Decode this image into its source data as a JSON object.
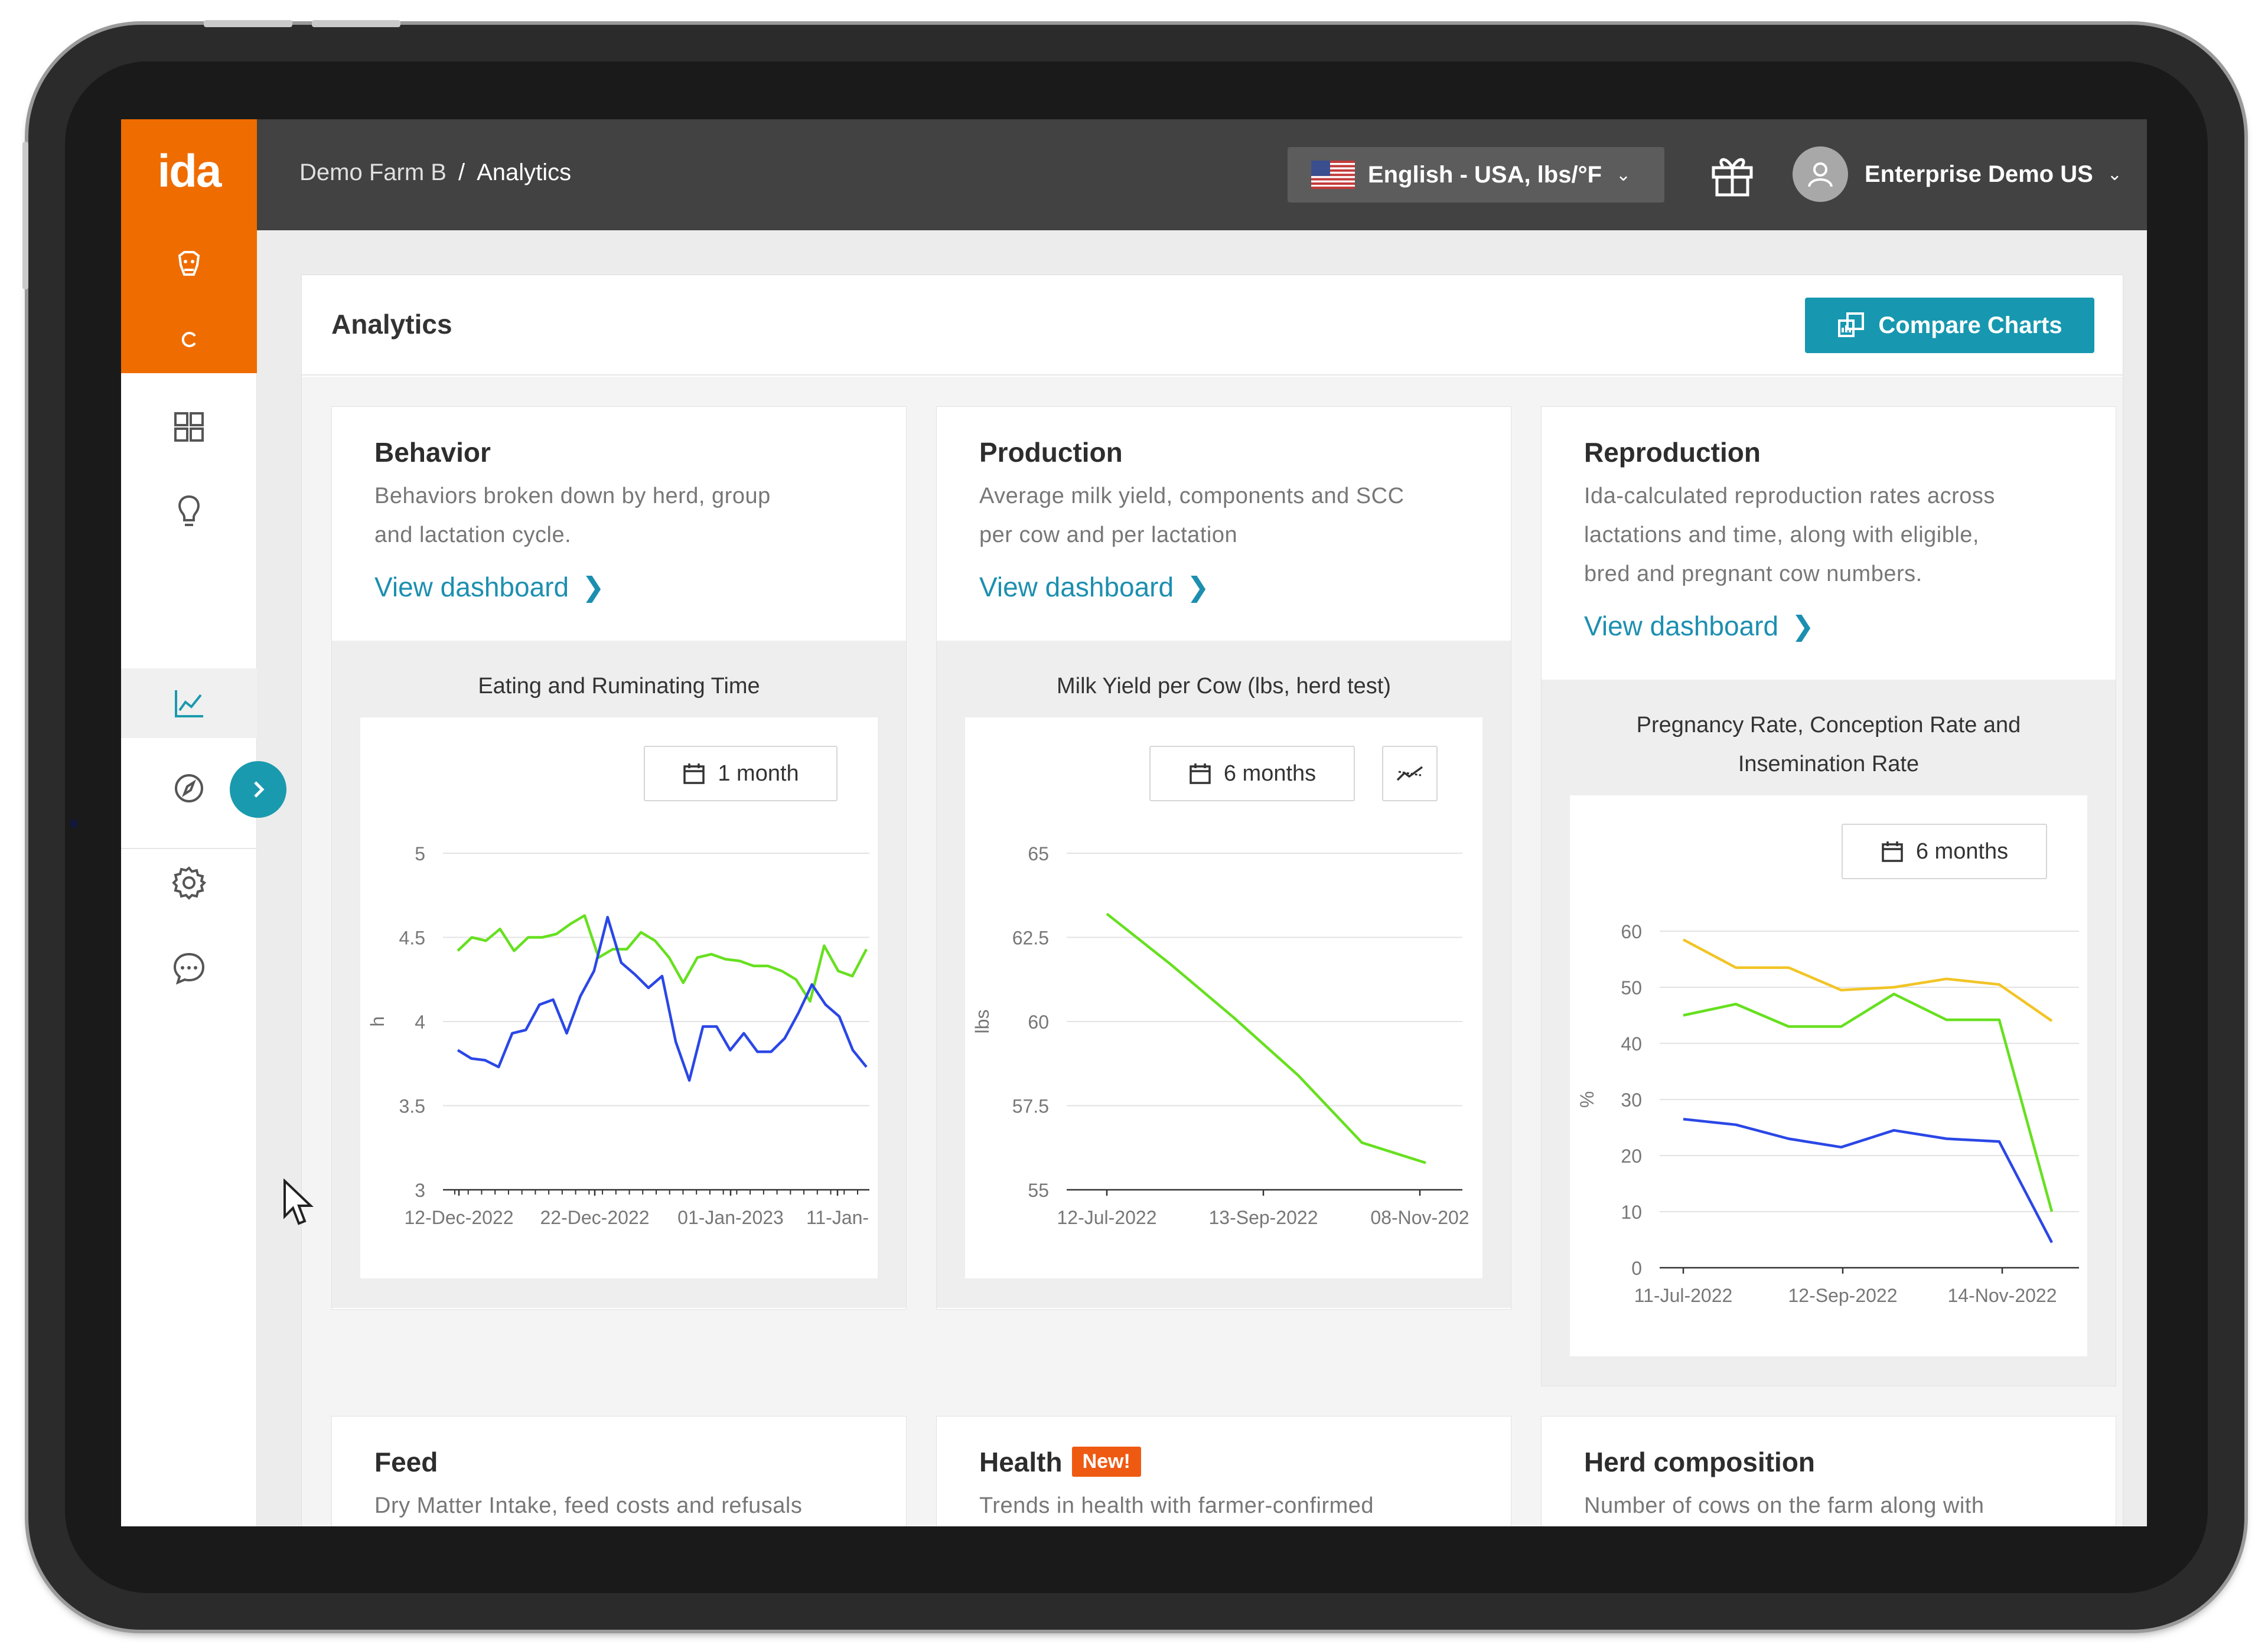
{
  "header": {
    "logo": "ida",
    "breadcrumb": {
      "farm": "Demo Farm B",
      "separator": "/",
      "current": "Analytics"
    },
    "language": {
      "label": "English - USA, lbs/°F"
    },
    "user": {
      "name": "Enterprise Demo US"
    }
  },
  "sidebar": {
    "icons": [
      "cow-icon",
      "refresh-icon",
      "dashboard-grid-icon",
      "lightbulb-icon",
      "line-chart-icon",
      "compass-icon",
      "settings-gear-icon",
      "chat-bubble-icon",
      "play-icon"
    ],
    "active": "line-chart-icon",
    "colors": {
      "brand": "#ef6c00",
      "accent": "#1a9aae"
    }
  },
  "panel": {
    "title": "Analytics",
    "compare_label": "Compare Charts"
  },
  "cards": {
    "behavior": {
      "title": "Behavior",
      "desc_line1": "Behaviors broken down by herd, group",
      "desc_line2": "and lactation cycle.",
      "link": "View dashboard",
      "chart_title": "Eating and Ruminating Time",
      "range": "1 month"
    },
    "production": {
      "title": "Production",
      "desc_line1": "Average milk yield, components and SCC",
      "desc_line2": "per cow and per lactation",
      "link": "View dashboard",
      "chart_title": "Milk Yield per Cow (lbs, herd test)",
      "range": "6 months"
    },
    "reproduction": {
      "title": "Reproduction",
      "desc_line1": "Ida-calculated reproduction rates across",
      "desc_line2": "lactations and time, along with eligible,",
      "desc_line3": "bred and pregnant cow numbers.",
      "link": "View dashboard",
      "chart_title_line1": "Pregnancy Rate, Conception Rate and",
      "chart_title_line2": "Insemination Rate",
      "range": "6 months"
    },
    "feed": {
      "title": "Feed",
      "desc_line1": "Dry Matter Intake, feed costs and refusals"
    },
    "health": {
      "title": "Health",
      "badge": "New!",
      "desc_line1": "Trends in health with farmer-confirmed"
    },
    "herd": {
      "title": "Herd composition",
      "desc_line1": "Number of cows on the farm along with"
    }
  },
  "chart_data": [
    {
      "id": "behavior",
      "type": "line",
      "title": "Eating and Ruminating Time",
      "ylabel": "h",
      "ylim": [
        3,
        5
      ],
      "yticks": [
        "3",
        "3.5",
        "4",
        "4.5",
        "5"
      ],
      "xticks": [
        "12-Dec-2022",
        "22-Dec-2022",
        "01-Jan-2023",
        "11-Jan-"
      ],
      "series": [
        {
          "color": "#66e01f",
          "values": [
            4.42,
            4.5,
            4.48,
            4.55,
            4.42,
            4.5,
            4.5,
            4.52,
            4.58,
            4.63,
            4.38,
            4.43,
            4.43,
            4.53,
            4.48,
            4.38,
            4.23,
            4.38,
            4.4,
            4.37,
            4.36,
            4.33,
            4.33,
            4.3,
            4.25,
            4.12,
            4.45,
            4.3,
            4.27,
            4.43
          ]
        },
        {
          "color": "#2a47e6",
          "values": [
            3.83,
            3.78,
            3.77,
            3.73,
            3.93,
            3.95,
            4.1,
            4.13,
            3.93,
            4.15,
            4.3,
            4.62,
            4.35,
            4.28,
            4.2,
            4.27,
            3.88,
            3.65,
            3.97,
            3.97,
            3.83,
            3.93,
            3.82,
            3.82,
            3.9,
            4.05,
            4.22,
            4.1,
            4.03,
            3.83,
            3.73
          ]
        }
      ]
    },
    {
      "id": "production",
      "type": "line",
      "title": "Milk Yield per Cow (lbs, herd test)",
      "ylabel": "lbs",
      "ylim": [
        55,
        65
      ],
      "yticks": [
        "55",
        "57.5",
        "60",
        "62.5",
        "65"
      ],
      "xticks": [
        "12-Jul-2022",
        "13-Sep-2022",
        "08-Nov-202"
      ],
      "series": [
        {
          "color": "#66e01f",
          "values": [
            63.2,
            61.7,
            60.1,
            58.4,
            56.4,
            55.8
          ]
        }
      ]
    },
    {
      "id": "reproduction",
      "type": "line",
      "title": "Pregnancy Rate, Conception Rate and Insemination Rate",
      "ylabel": "%",
      "ylim": [
        0,
        60
      ],
      "yticks": [
        "0",
        "10",
        "20",
        "30",
        "40",
        "50",
        "60"
      ],
      "xticks": [
        "11-Jul-2022",
        "12-Sep-2022",
        "14-Nov-2022"
      ],
      "series": [
        {
          "color": "#f2c425",
          "values": [
            58.5,
            53.5,
            53.5,
            49.5,
            50,
            51.5,
            50.5,
            44
          ]
        },
        {
          "color": "#66e01f",
          "values": [
            45,
            47,
            43,
            43,
            48.8,
            44.2,
            44.2,
            10
          ]
        },
        {
          "color": "#2a47e6",
          "values": [
            26.5,
            25.5,
            23,
            21.5,
            24.5,
            23,
            22.5,
            4.5
          ]
        }
      ]
    }
  ]
}
